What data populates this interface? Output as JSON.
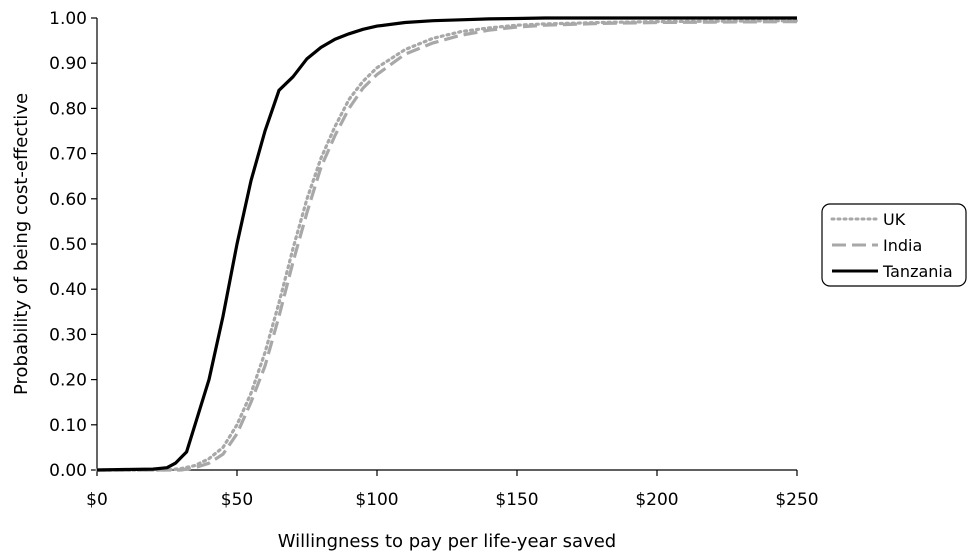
{
  "chart_data": {
    "type": "line",
    "xlabel": "Willingness to pay per life-year saved",
    "ylabel": "Probability of being cost-effective",
    "xlim": [
      0,
      250
    ],
    "ylim": [
      0,
      1
    ],
    "x_ticks": [
      0,
      50,
      100,
      150,
      200,
      250
    ],
    "x_tick_labels": [
      "$0",
      "$50",
      "$100",
      "$150",
      "$200",
      "$250"
    ],
    "y_ticks": [
      0,
      0.1,
      0.2,
      0.3,
      0.4,
      0.5,
      0.6,
      0.7,
      0.8,
      0.9,
      1.0
    ],
    "y_tick_labels": [
      "0.00",
      "0.10",
      "0.20",
      "0.30",
      "0.40",
      "0.50",
      "0.60",
      "0.70",
      "0.80",
      "0.90",
      "1.00"
    ],
    "grid": false,
    "legend_position": "right",
    "series": [
      {
        "name": "UK",
        "style": "dotted",
        "color": "#a8a8a8",
        "x": [
          0,
          10,
          20,
          25,
          30,
          35,
          40,
          45,
          50,
          55,
          60,
          65,
          70,
          75,
          80,
          85,
          90,
          95,
          100,
          110,
          120,
          130,
          140,
          150,
          160,
          180,
          200,
          220,
          250
        ],
        "y": [
          0,
          0,
          0,
          0,
          0.003,
          0.01,
          0.025,
          0.05,
          0.1,
          0.17,
          0.26,
          0.37,
          0.49,
          0.6,
          0.69,
          0.76,
          0.82,
          0.86,
          0.89,
          0.93,
          0.955,
          0.97,
          0.978,
          0.984,
          0.987,
          0.99,
          0.992,
          0.993,
          0.994
        ]
      },
      {
        "name": "India",
        "style": "dashed",
        "color": "#a8a8a8",
        "x": [
          0,
          10,
          20,
          25,
          30,
          35,
          40,
          45,
          50,
          55,
          60,
          65,
          70,
          75,
          80,
          85,
          90,
          95,
          100,
          110,
          120,
          130,
          140,
          150,
          160,
          180,
          200,
          220,
          250
        ],
        "y": [
          0,
          0,
          0,
          0,
          0,
          0.005,
          0.015,
          0.035,
          0.08,
          0.15,
          0.23,
          0.34,
          0.46,
          0.57,
          0.67,
          0.74,
          0.8,
          0.845,
          0.875,
          0.92,
          0.945,
          0.962,
          0.973,
          0.98,
          0.984,
          0.988,
          0.99,
          0.991,
          0.992
        ]
      },
      {
        "name": "Tanzania",
        "style": "solid",
        "color": "#000000",
        "x": [
          0,
          10,
          20,
          25,
          28,
          32,
          35,
          40,
          45,
          50,
          55,
          60,
          65,
          70,
          75,
          80,
          85,
          90,
          95,
          100,
          110,
          120,
          130,
          140,
          150,
          160,
          180,
          200,
          220,
          250
        ],
        "y": [
          0,
          0.001,
          0.002,
          0.005,
          0.015,
          0.04,
          0.1,
          0.2,
          0.34,
          0.5,
          0.64,
          0.75,
          0.84,
          0.87,
          0.91,
          0.935,
          0.953,
          0.965,
          0.975,
          0.982,
          0.99,
          0.994,
          0.996,
          0.998,
          0.999,
          1.0,
          1.0,
          1.0,
          1.0,
          1.0
        ]
      }
    ]
  }
}
